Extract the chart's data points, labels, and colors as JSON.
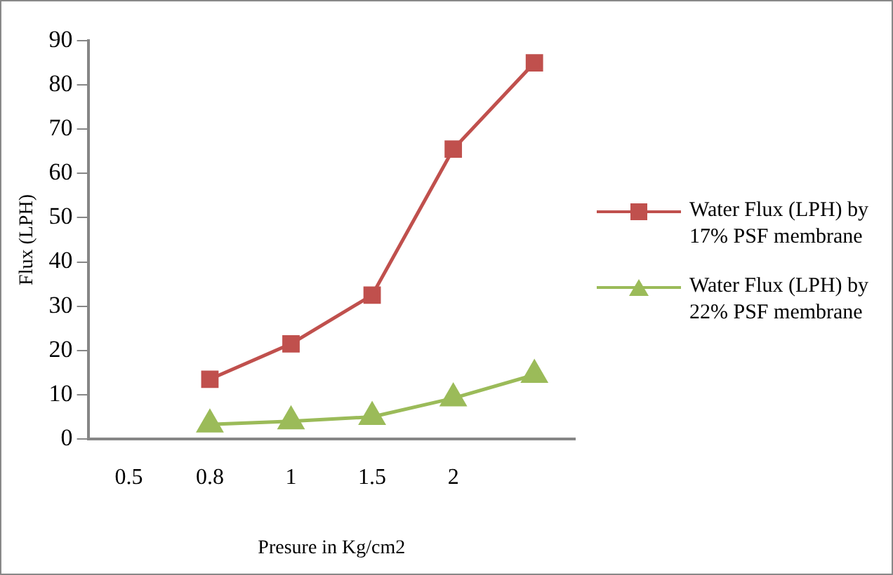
{
  "chart_data": {
    "type": "line",
    "xlabel": "Presure in Kg/cm2",
    "ylabel": "Flux (LPH)",
    "categories": [
      "0.5",
      "0.8",
      "1",
      "1.5",
      "2",
      null
    ],
    "ylim": [
      0,
      90
    ],
    "yticks": [
      0,
      10,
      20,
      30,
      40,
      50,
      60,
      70,
      80,
      90
    ],
    "grid": false,
    "legend": "right",
    "series": [
      {
        "name": "Water Flux (LPH) by 17% PSF membrane",
        "color": "#c0504d",
        "marker": "square",
        "values": [
          null,
          13.5,
          21.5,
          32.5,
          65.5,
          85
        ]
      },
      {
        "name": "Water Flux (LPH) by 22% PSF membrane",
        "color": "#9bbb59",
        "marker": "triangle",
        "values": [
          null,
          3.3,
          4,
          5,
          9.2,
          14.5
        ]
      }
    ]
  }
}
